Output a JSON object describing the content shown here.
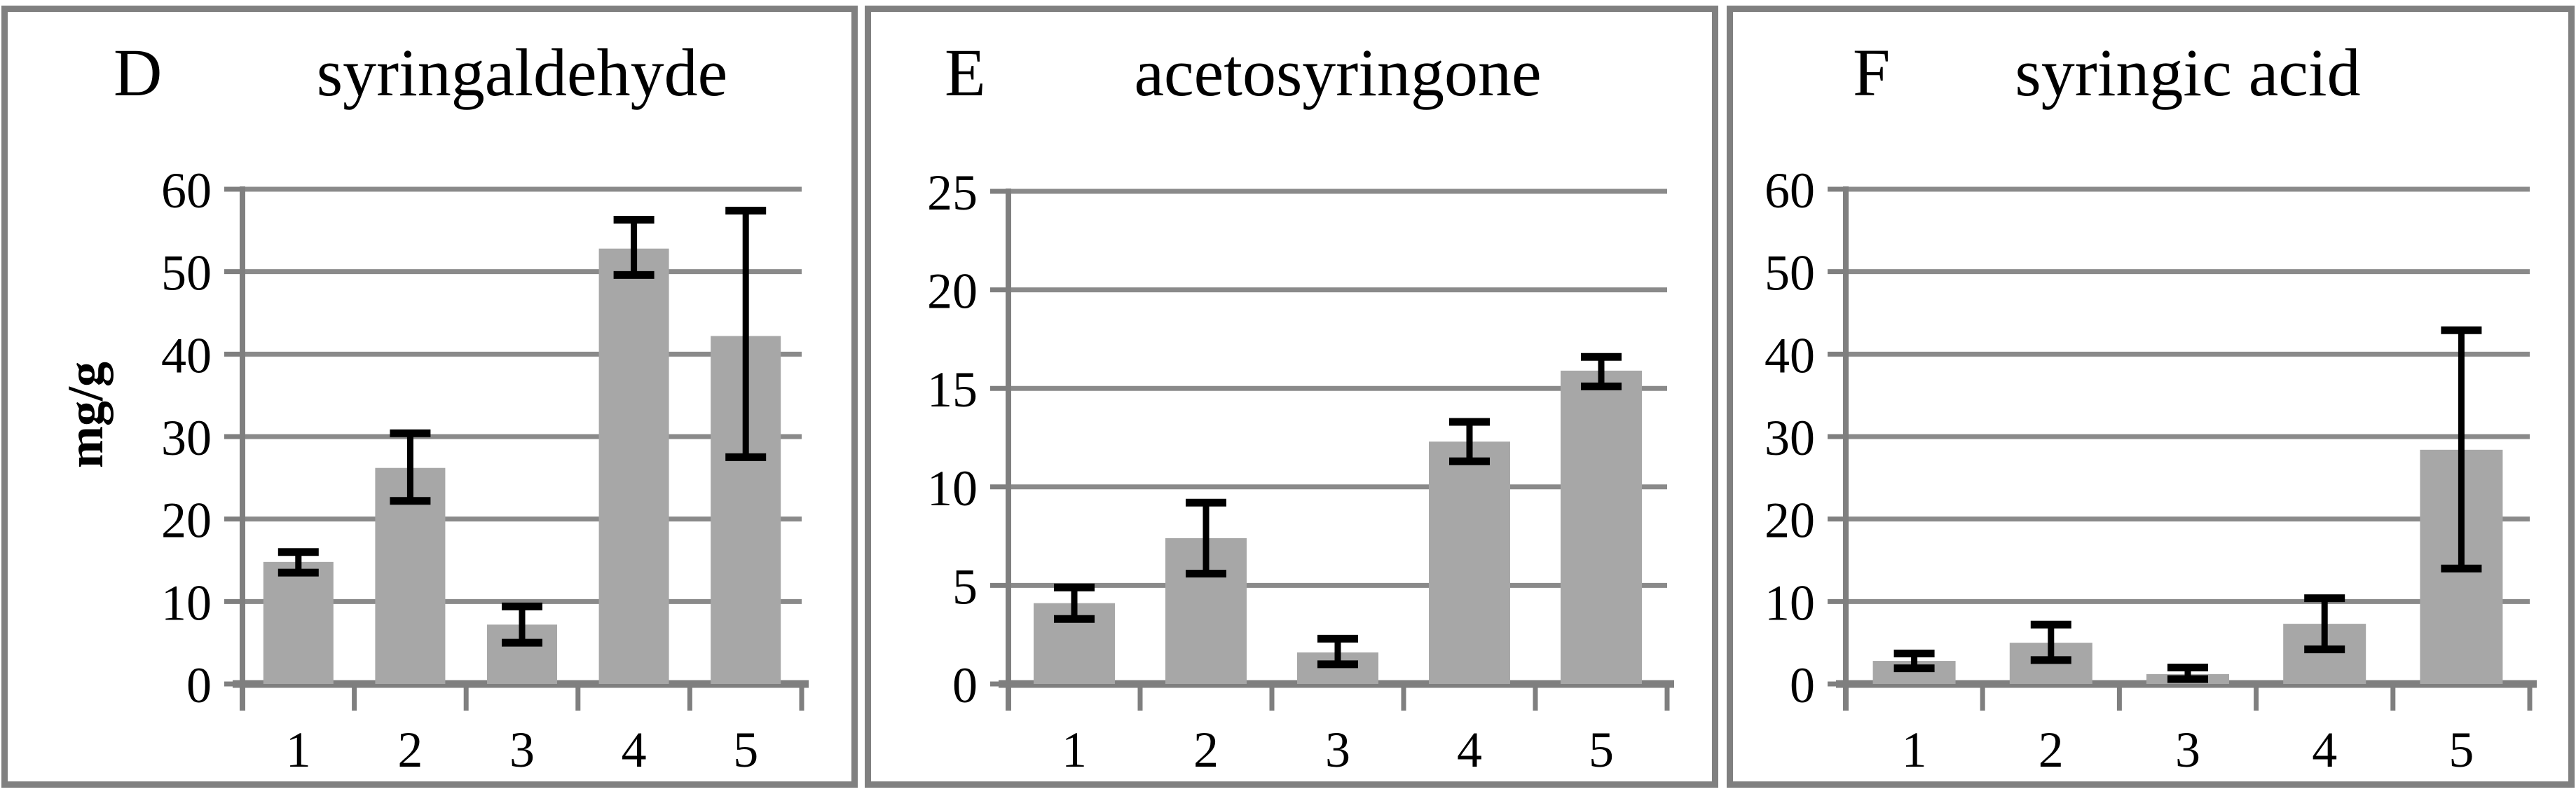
{
  "figure": {
    "background": "#ffffff",
    "panel_border_color": "#808080",
    "bar_fill_color": "#a7a7a7",
    "gridline_color": "#8a8a8a",
    "axis_color": "#7f7f7f",
    "error_bar_color": "#000000",
    "text_color": "#000000"
  },
  "chart_data": [
    {
      "type": "bar",
      "panel_label": "D",
      "title": "syringaldehyde",
      "ylabel": "mg/g",
      "categories": [
        "1",
        "2",
        "3",
        "4",
        "5"
      ],
      "values": [
        14.8,
        26.2,
        7.2,
        52.8,
        42.2
      ],
      "error_low": [
        13.5,
        22.2,
        5.0,
        49.6,
        27.5
      ],
      "error_high": [
        16.0,
        30.4,
        9.4,
        56.3,
        57.4
      ],
      "ylim": [
        0,
        60
      ],
      "ytick_step": 10,
      "ytick_labels_top_to_bottom": [
        "60",
        "50",
        "40",
        "30",
        "20",
        "10",
        "0"
      ],
      "grid": true,
      "legend": "none"
    },
    {
      "type": "bar",
      "panel_label": "E",
      "title": "acetosyringone",
      "ylabel": "",
      "categories": [
        "1",
        "2",
        "3",
        "4",
        "5"
      ],
      "values": [
        4.1,
        7.4,
        1.6,
        12.3,
        15.9
      ],
      "error_low": [
        3.3,
        5.6,
        1.0,
        11.3,
        15.1
      ],
      "error_high": [
        4.9,
        9.2,
        2.3,
        13.3,
        16.6
      ],
      "ylim": [
        0,
        25
      ],
      "ytick_step": 5,
      "ytick_labels_top_to_bottom": [
        "25",
        "20",
        "15",
        "10",
        "5",
        "0"
      ],
      "grid": true,
      "legend": "none"
    },
    {
      "type": "bar",
      "panel_label": "F",
      "title": "syringic acid",
      "ylabel": "",
      "categories": [
        "1",
        "2",
        "3",
        "4",
        "5"
      ],
      "values": [
        2.8,
        5.0,
        1.2,
        7.3,
        28.4
      ],
      "error_low": [
        1.9,
        2.9,
        0.6,
        4.2,
        14.0
      ],
      "error_high": [
        3.7,
        7.2,
        2.0,
        10.4,
        42.9
      ],
      "ylim": [
        0,
        60
      ],
      "ytick_step": 10,
      "ytick_labels_top_to_bottom": [
        "60",
        "50",
        "40",
        "30",
        "20",
        "10",
        "0"
      ],
      "grid": true,
      "legend": "none"
    }
  ]
}
